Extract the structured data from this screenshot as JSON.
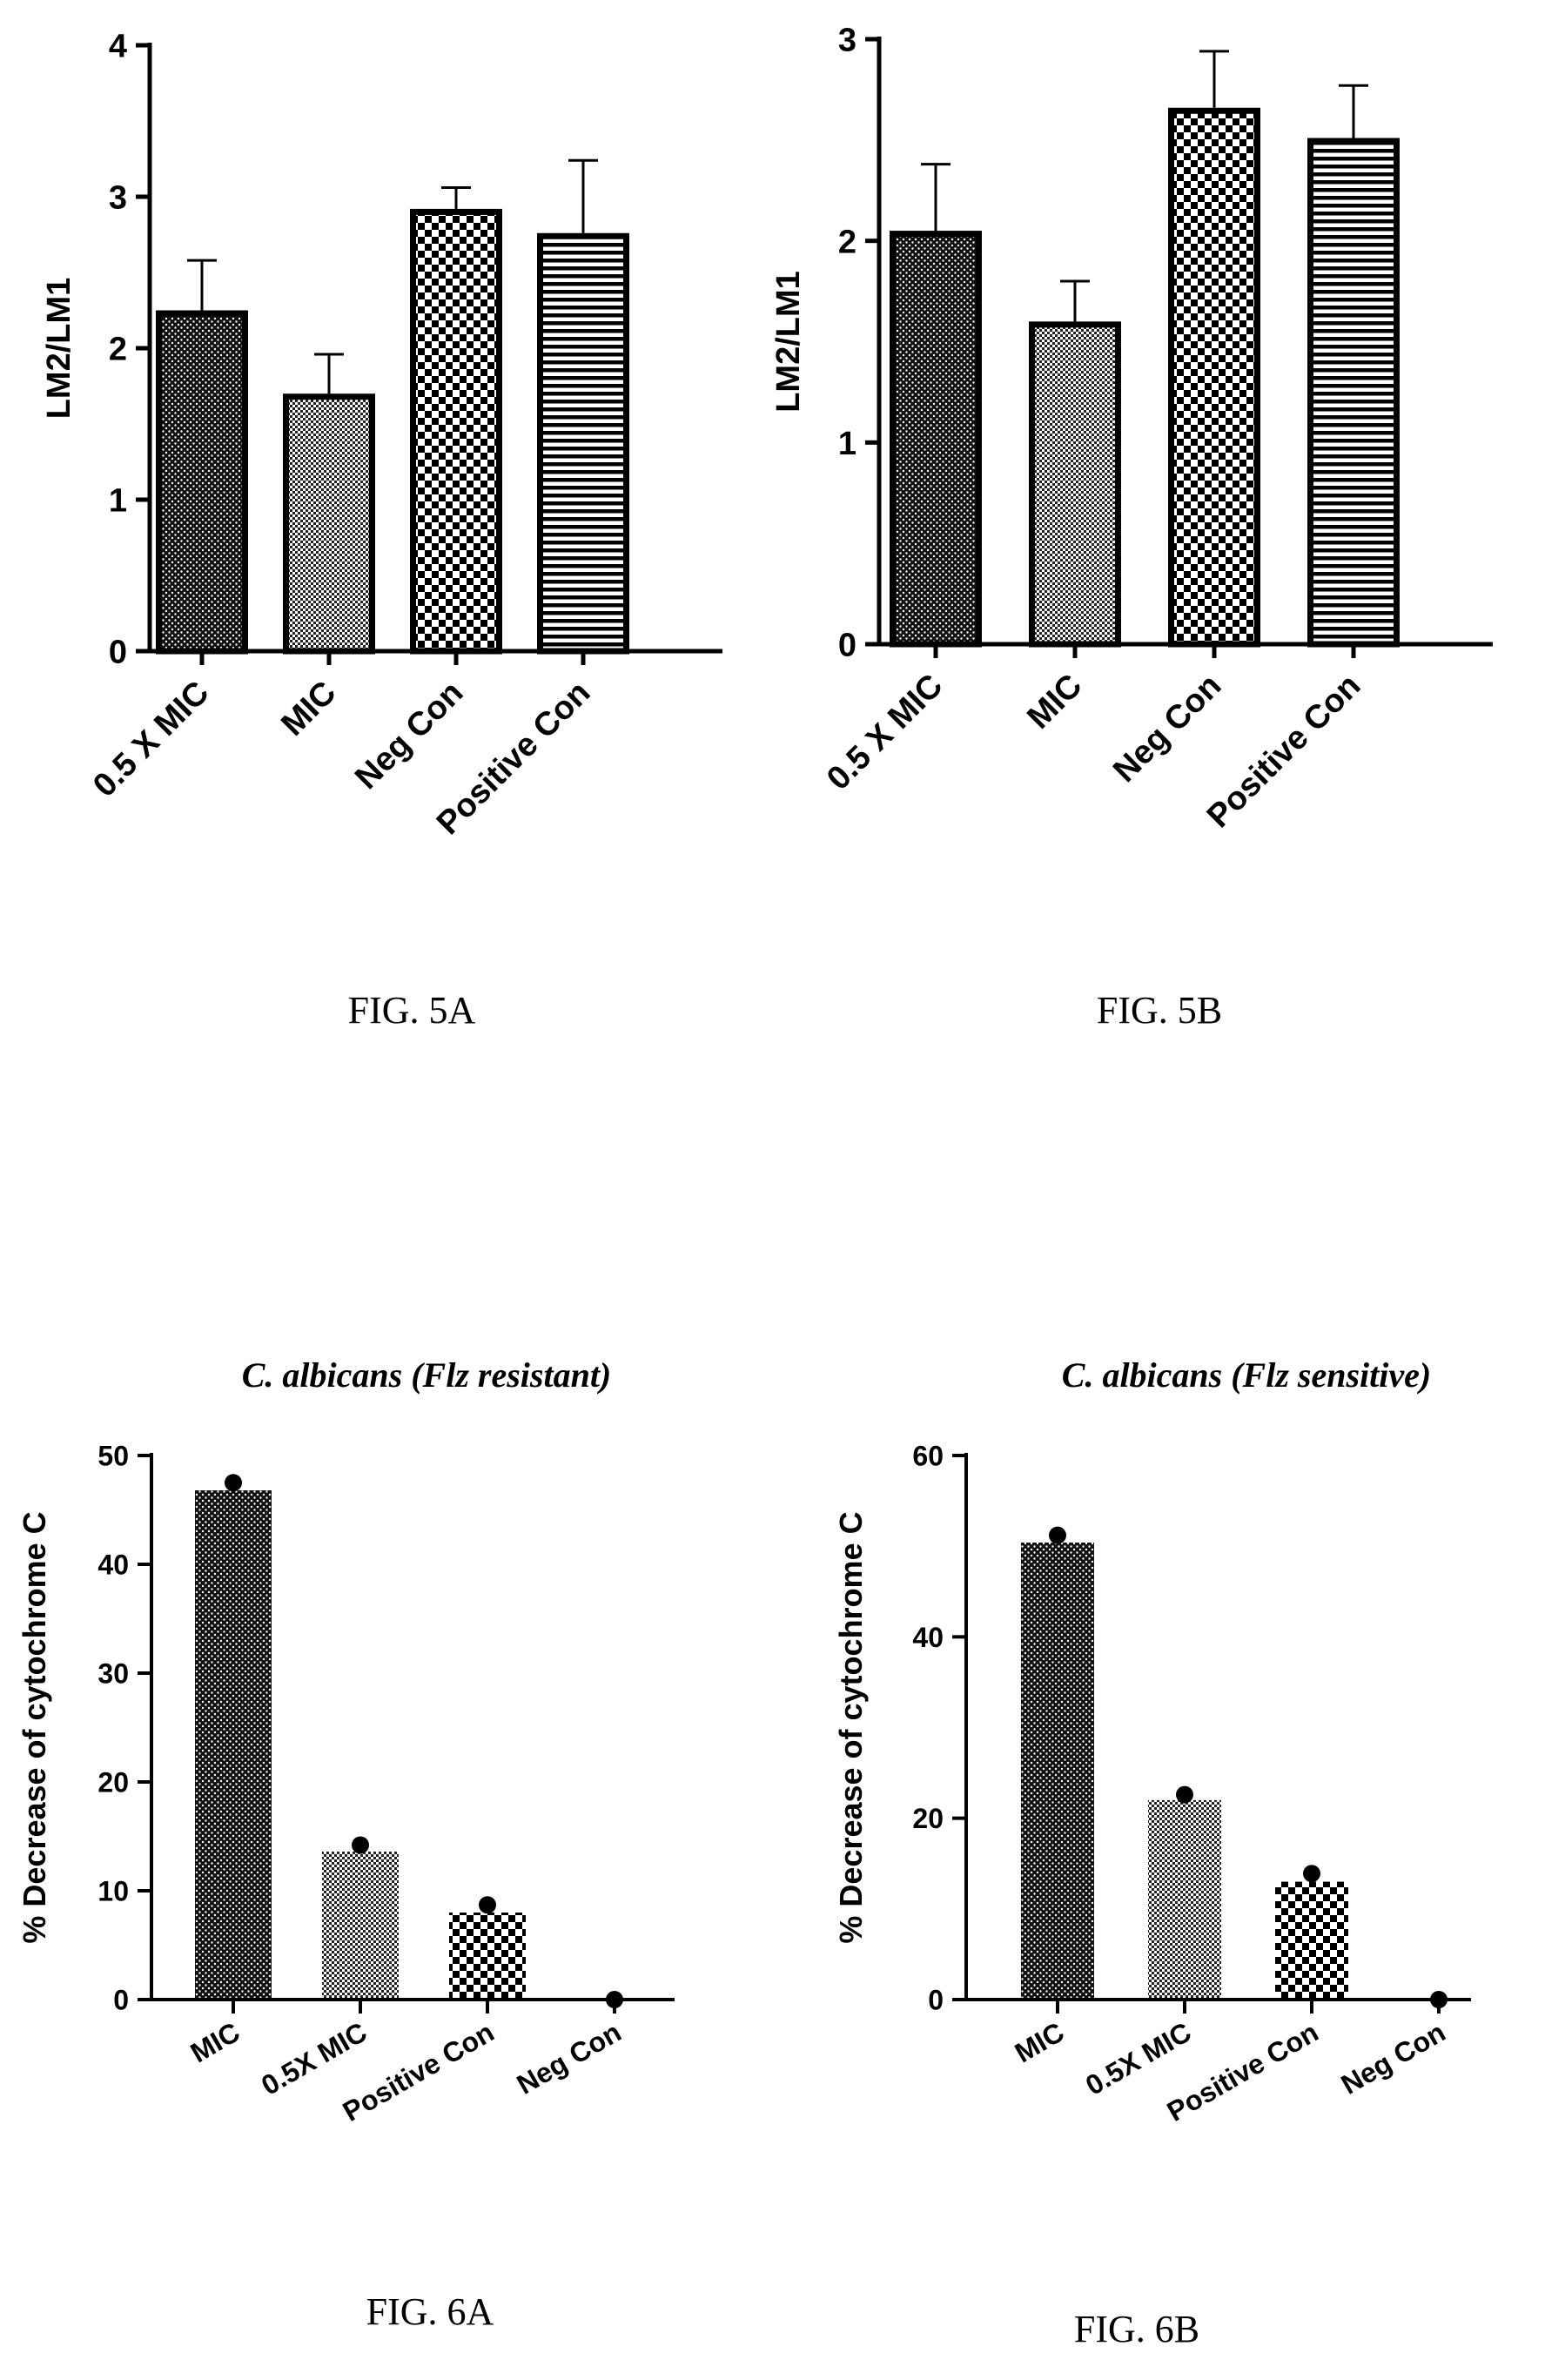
{
  "chart_data": [
    {
      "id": "fig5a",
      "type": "bar",
      "caption": "FIG. 5A",
      "title": "",
      "xlabel": "",
      "ylabel": "LM2/LM1",
      "ylim": [
        0,
        4
      ],
      "yticks": [
        0,
        1,
        2,
        3,
        4
      ],
      "categories": [
        "0.5 X MIC",
        "MIC",
        "Neg Con",
        "Positive Con"
      ],
      "values": [
        2.25,
        1.7,
        2.92,
        2.76
      ],
      "errors": [
        0.33,
        0.26,
        0.14,
        0.48
      ],
      "patterns": [
        "dots-dark",
        "dots-light",
        "checker",
        "hlines"
      ],
      "grid": false,
      "legend": "none"
    },
    {
      "id": "fig5b",
      "type": "bar",
      "caption": "FIG. 5B",
      "title": "",
      "xlabel": "",
      "ylabel": "LM2/LM1",
      "ylim": [
        0,
        3
      ],
      "yticks": [
        0,
        1,
        2,
        3
      ],
      "categories": [
        "0.5 X MIC",
        "MIC",
        "Neg Con",
        "Positive Con"
      ],
      "values": [
        2.05,
        1.6,
        2.66,
        2.51
      ],
      "errors": [
        0.33,
        0.2,
        0.28,
        0.26
      ],
      "patterns": [
        "dots-dark",
        "dots-light",
        "checker",
        "hlines"
      ],
      "grid": false,
      "legend": "none"
    },
    {
      "id": "fig6a",
      "type": "bar",
      "caption": "FIG. 6A",
      "title": "C. albicans  (Flz resistant)",
      "xlabel": "",
      "ylabel": "% Decrease of cytochrome C",
      "ylim": [
        0,
        50
      ],
      "yticks": [
        0,
        10,
        20,
        30,
        40,
        50
      ],
      "categories": [
        "MIC",
        "0.5X MIC",
        "Positive Con",
        "Neg Con"
      ],
      "values": [
        46.8,
        13.6,
        8.0,
        0
      ],
      "points": [
        47.5,
        14.2,
        8.7,
        0
      ],
      "patterns": [
        "dots-dark",
        "dots-light",
        "checker",
        "none"
      ],
      "grid": false,
      "legend": "none"
    },
    {
      "id": "fig6b",
      "type": "bar",
      "caption": "FIG. 6B",
      "title": "C. albicans  (Flz sensitive)",
      "xlabel": "",
      "ylabel": "% Decrease of cytochrome C",
      "ylim": [
        0,
        60
      ],
      "yticks": [
        0,
        20,
        40,
        60
      ],
      "categories": [
        "MIC",
        "0.5X MIC",
        "Positive Con",
        "Neg Con"
      ],
      "values": [
        50.4,
        22,
        13,
        0
      ],
      "points": [
        51.2,
        22.6,
        13.9,
        0
      ],
      "patterns": [
        "dots-dark",
        "dots-light",
        "checker",
        "none"
      ],
      "grid": false,
      "legend": "none"
    }
  ]
}
